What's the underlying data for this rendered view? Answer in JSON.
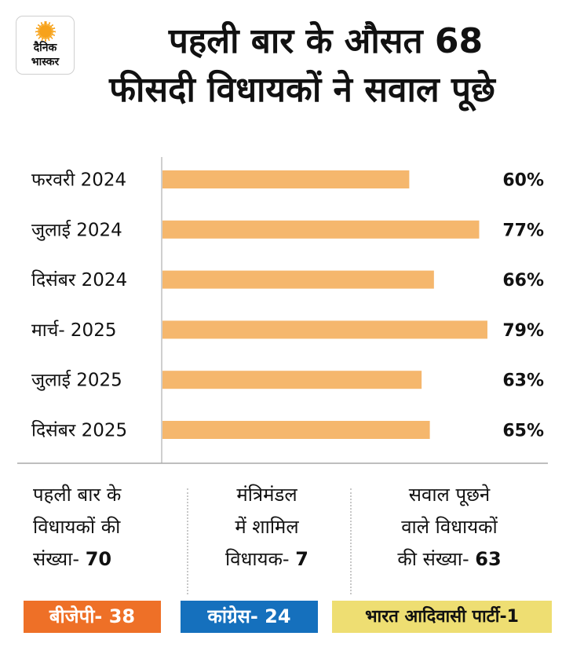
{
  "brand": {
    "logo_line1": "दैनिक",
    "logo_line2": "भास्कर",
    "logo_icon": "sun-icon"
  },
  "title": {
    "line1": "पहली बार के औसत 68",
    "line2": "फीसदी विधायकों ने सवाल पूछे"
  },
  "chart_data": {
    "type": "bar",
    "orientation": "horizontal",
    "title": "पहली बार के औसत 68 फीसदी विधायकों ने सवाल पूछे",
    "categories": [
      "फरवरी 2024",
      "जुलाई 2024",
      "दिसंबर 2024",
      "मार्च- 2025",
      "जुलाई 2025",
      "दिसंबर 2025"
    ],
    "values": [
      60,
      77,
      66,
      79,
      63,
      65
    ],
    "value_labels": [
      "60%",
      "77%",
      "66%",
      "79%",
      "63%",
      "65%"
    ],
    "unit": "%",
    "xlabel": "",
    "ylabel": "",
    "xlim": [
      0,
      80
    ],
    "grid": false,
    "bar_color": "#f5b76d"
  },
  "stats": [
    {
      "lines": [
        "पहली बार के",
        "विधायकों की",
        "संख्या- "
      ],
      "value": "70"
    },
    {
      "lines": [
        "मंत्रिमंडल",
        "में शामिल",
        "विधायक- "
      ],
      "value": "7"
    },
    {
      "lines": [
        "सवाल पूछने",
        "वाले विधायकों",
        "की संख्या- "
      ],
      "value": "63"
    }
  ],
  "parties": [
    {
      "label": "बीजेपी- 38",
      "color": "#ee7027"
    },
    {
      "label": "कांग्रेस- 24",
      "color": "#1570bd"
    },
    {
      "label": "भारत आदिवासी पार्टी-1",
      "color": "#eede72"
    }
  ]
}
